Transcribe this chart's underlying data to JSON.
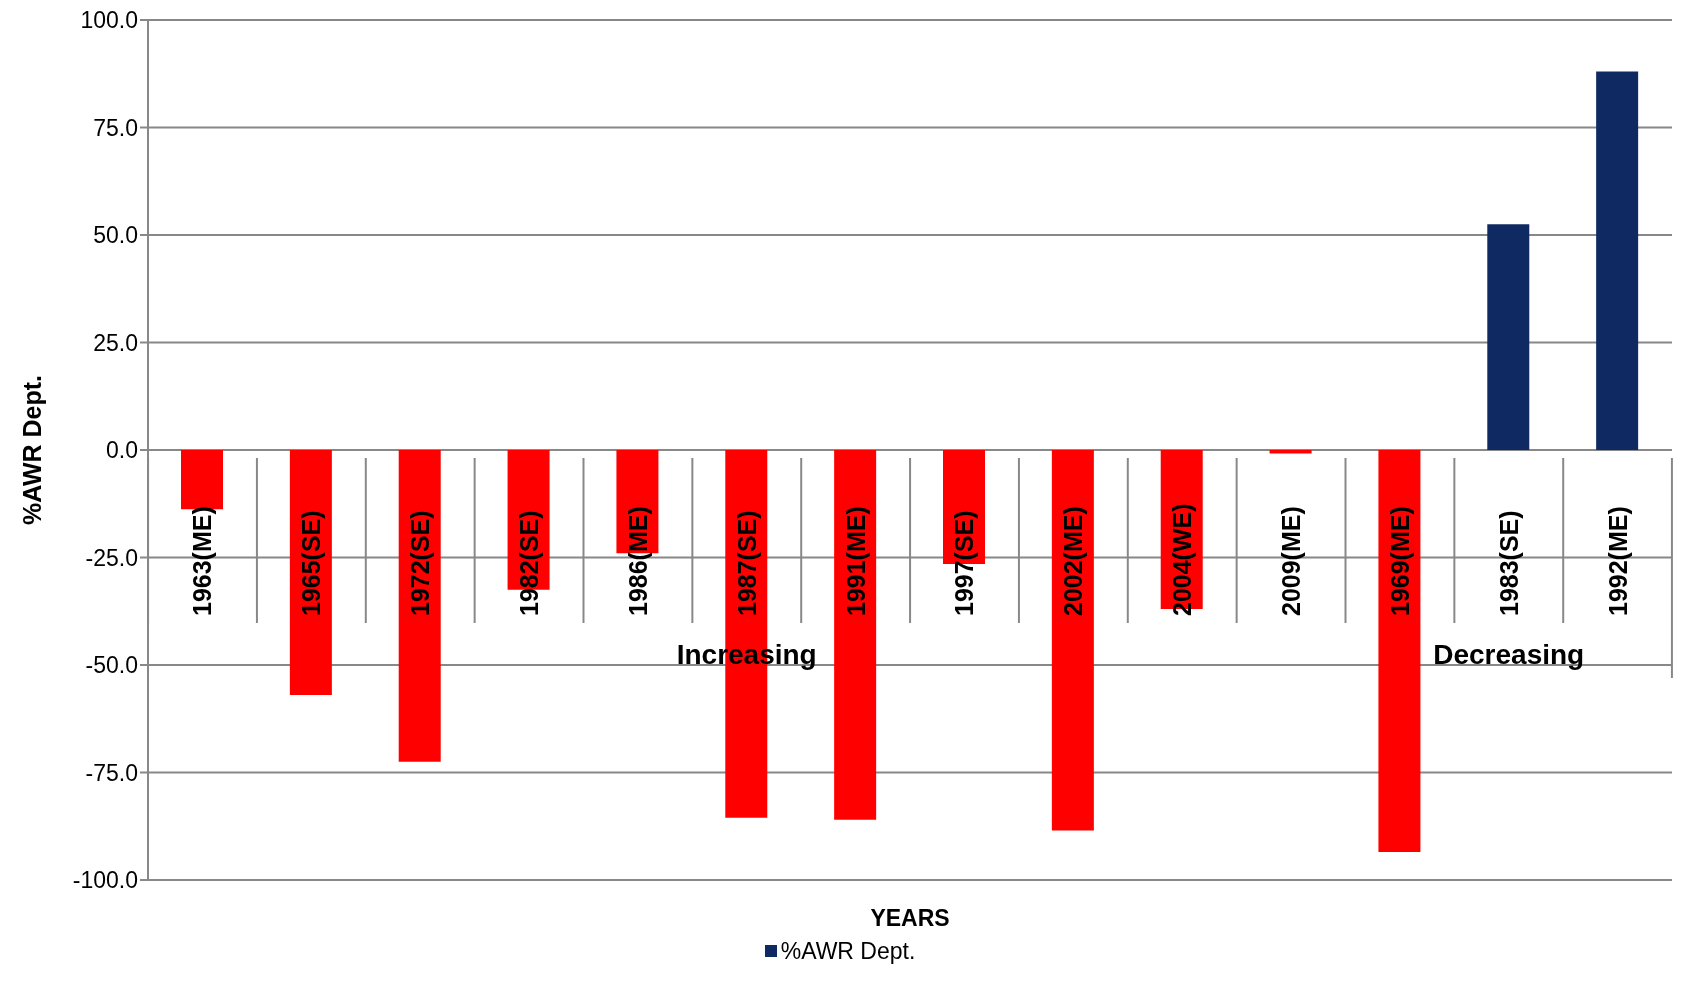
{
  "chart_data": {
    "type": "bar",
    "xlabel": "YEARS",
    "ylabel": "%AWR Dept.",
    "categories": [
      "1963(ME)",
      "1965(SE)",
      "1972(SE)",
      "1982(SE)",
      "1986(ME)",
      "1987(SE)",
      "1991(ME)",
      "1997(SE)",
      "2002(ME)",
      "2004(WE)",
      "2009(ME)",
      "1969(ME)",
      "1983(SE)",
      "1992(ME)"
    ],
    "series": [
      {
        "name": "%AWR Dept.",
        "color": "#0f2a63",
        "values": [
          -13.8,
          -57,
          -72.5,
          -32.5,
          -24,
          -85.5,
          -86,
          -26.5,
          -88.5,
          -37,
          -0.8,
          -93.5,
          52.5,
          88
        ],
        "colors": [
          "#ff0000",
          "#ff0000",
          "#ff0000",
          "#ff0000",
          "#ff0000",
          "#ff0000",
          "#ff0000",
          "#ff0000",
          "#ff0000",
          "#ff0000",
          "#ff0000",
          "#ff0000",
          "#0f2a63",
          "#0f2a63"
        ]
      }
    ],
    "ylim": [
      -100,
      100
    ],
    "yticks": [
      {
        "value": -100,
        "label": "-100.0"
      },
      {
        "value": -75,
        "label": "-75.0"
      },
      {
        "value": -50,
        "label": "-50.0"
      },
      {
        "value": -25,
        "label": "-25.0"
      },
      {
        "value": 0,
        "label": "0.0"
      },
      {
        "value": 25,
        "label": "25.0"
      },
      {
        "value": 50,
        "label": "50.0"
      },
      {
        "value": 75,
        "label": "75.0"
      },
      {
        "value": 100,
        "label": "100.0"
      }
    ],
    "annotations": [
      "Increasing",
      "Decreasing"
    ],
    "grid": "y",
    "legend": "bottom"
  }
}
